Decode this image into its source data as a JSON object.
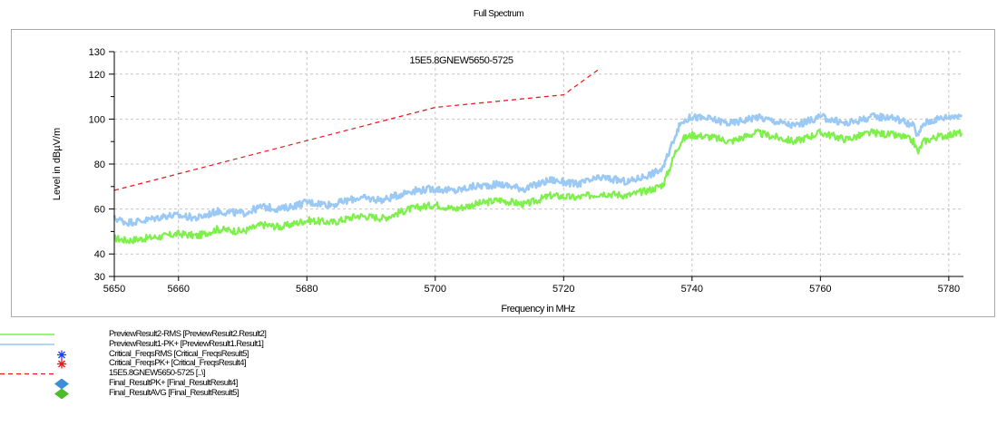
{
  "title": "Full Spectrum",
  "chart_data": {
    "type": "line",
    "title": "Full Spectrum",
    "xlabel": "Frequency in MHz",
    "ylabel": "Level in dBµV/m",
    "xlim": [
      5650,
      5782
    ],
    "ylim": [
      30,
      130
    ],
    "x_ticks": [
      5650,
      5660,
      5680,
      5700,
      5720,
      5740,
      5760,
      5780
    ],
    "y_ticks": [
      30,
      40,
      60,
      80,
      100,
      120,
      130
    ],
    "grid": true,
    "series": [
      {
        "name": "PreviewResult2-RMS [PreviewResult2.Result2]",
        "color": "#7df04a",
        "style": "solid",
        "x": [
          5650,
          5652,
          5655,
          5658,
          5660,
          5663,
          5666,
          5670,
          5673,
          5676,
          5680,
          5684,
          5688,
          5692,
          5696,
          5700,
          5703,
          5706,
          5710,
          5714,
          5718,
          5722,
          5726,
          5730,
          5734,
          5735.5,
          5736.5,
          5737.5,
          5738.5,
          5740,
          5743,
          5746,
          5750,
          5753,
          5756,
          5760,
          5764,
          5768,
          5771,
          5773,
          5774.5,
          5775.2,
          5776,
          5778,
          5782
        ],
        "values": [
          47,
          46,
          47,
          48,
          49,
          48,
          51,
          50,
          53,
          52,
          55,
          54,
          57,
          56,
          60,
          62,
          60,
          62,
          64,
          62,
          66,
          65,
          67,
          66,
          69,
          71,
          78,
          86,
          91,
          93,
          92,
          90,
          94,
          92,
          90,
          94,
          91,
          94,
          93,
          92,
          90,
          85,
          90,
          92,
          94
        ]
      },
      {
        "name": "PreviewResult1-PK+ [PreviewResult1.Result1]",
        "color": "#99c9f4",
        "style": "solid",
        "x": [
          5650,
          5652,
          5655,
          5658,
          5660,
          5663,
          5666,
          5670,
          5673,
          5676,
          5680,
          5684,
          5688,
          5692,
          5696,
          5700,
          5703,
          5706,
          5710,
          5714,
          5718,
          5722,
          5726,
          5730,
          5734,
          5735.5,
          5736.5,
          5737.5,
          5738.5,
          5740,
          5743,
          5746,
          5750,
          5753,
          5756,
          5760,
          5764,
          5768,
          5771,
          5773,
          5774.5,
          5775.2,
          5776,
          5778,
          5782
        ],
        "values": [
          56,
          54,
          55,
          57,
          57,
          56,
          59,
          58,
          61,
          60,
          63,
          62,
          65,
          64,
          68,
          69,
          68,
          70,
          71,
          69,
          73,
          71,
          74,
          72,
          76,
          78,
          86,
          94,
          99,
          101,
          100,
          98,
          101,
          99,
          97,
          101,
          98,
          101,
          101,
          99,
          97,
          92,
          98,
          100,
          102
        ]
      },
      {
        "name": "15E5.8GNEW5650-5725 [..\\]",
        "color": "#e8151b",
        "style": "dashed",
        "x": [
          5650,
          5700,
          5720,
          5725.5
        ],
        "values": [
          68.3,
          105.2,
          110.8,
          122.2
        ],
        "annotation": "15E5.8GNEW5650-5725"
      }
    ],
    "legend": {
      "placement": "bottom-left",
      "entries": [
        {
          "label": "PreviewResult2-RMS [PreviewResult2.Result2]",
          "symbol": "line",
          "color": "#7df04a"
        },
        {
          "label": "PreviewResult1-PK+ [PreviewResult1.Result1]",
          "symbol": "line",
          "color": "#99c9f4"
        },
        {
          "label": "Critical_FreqsRMS [Critical_FreqsResult5]",
          "symbol": "star",
          "color": "#1c3df0"
        },
        {
          "label": "Critical_FreqsPK+ [Critical_FreqsResult4]",
          "symbol": "star",
          "color": "#e8151b"
        },
        {
          "label": "15E5.8GNEW5650-5725 [..\\]",
          "symbol": "dash",
          "color": "#e8151b"
        },
        {
          "label": "Final_ResultPK+ [Final_ResultResult4]",
          "symbol": "diamond",
          "color": "#3a8fd6"
        },
        {
          "label": "Final_ResultAVG [Final_ResultResult5]",
          "symbol": "diamond",
          "color": "#4dbb2a"
        }
      ]
    }
  }
}
